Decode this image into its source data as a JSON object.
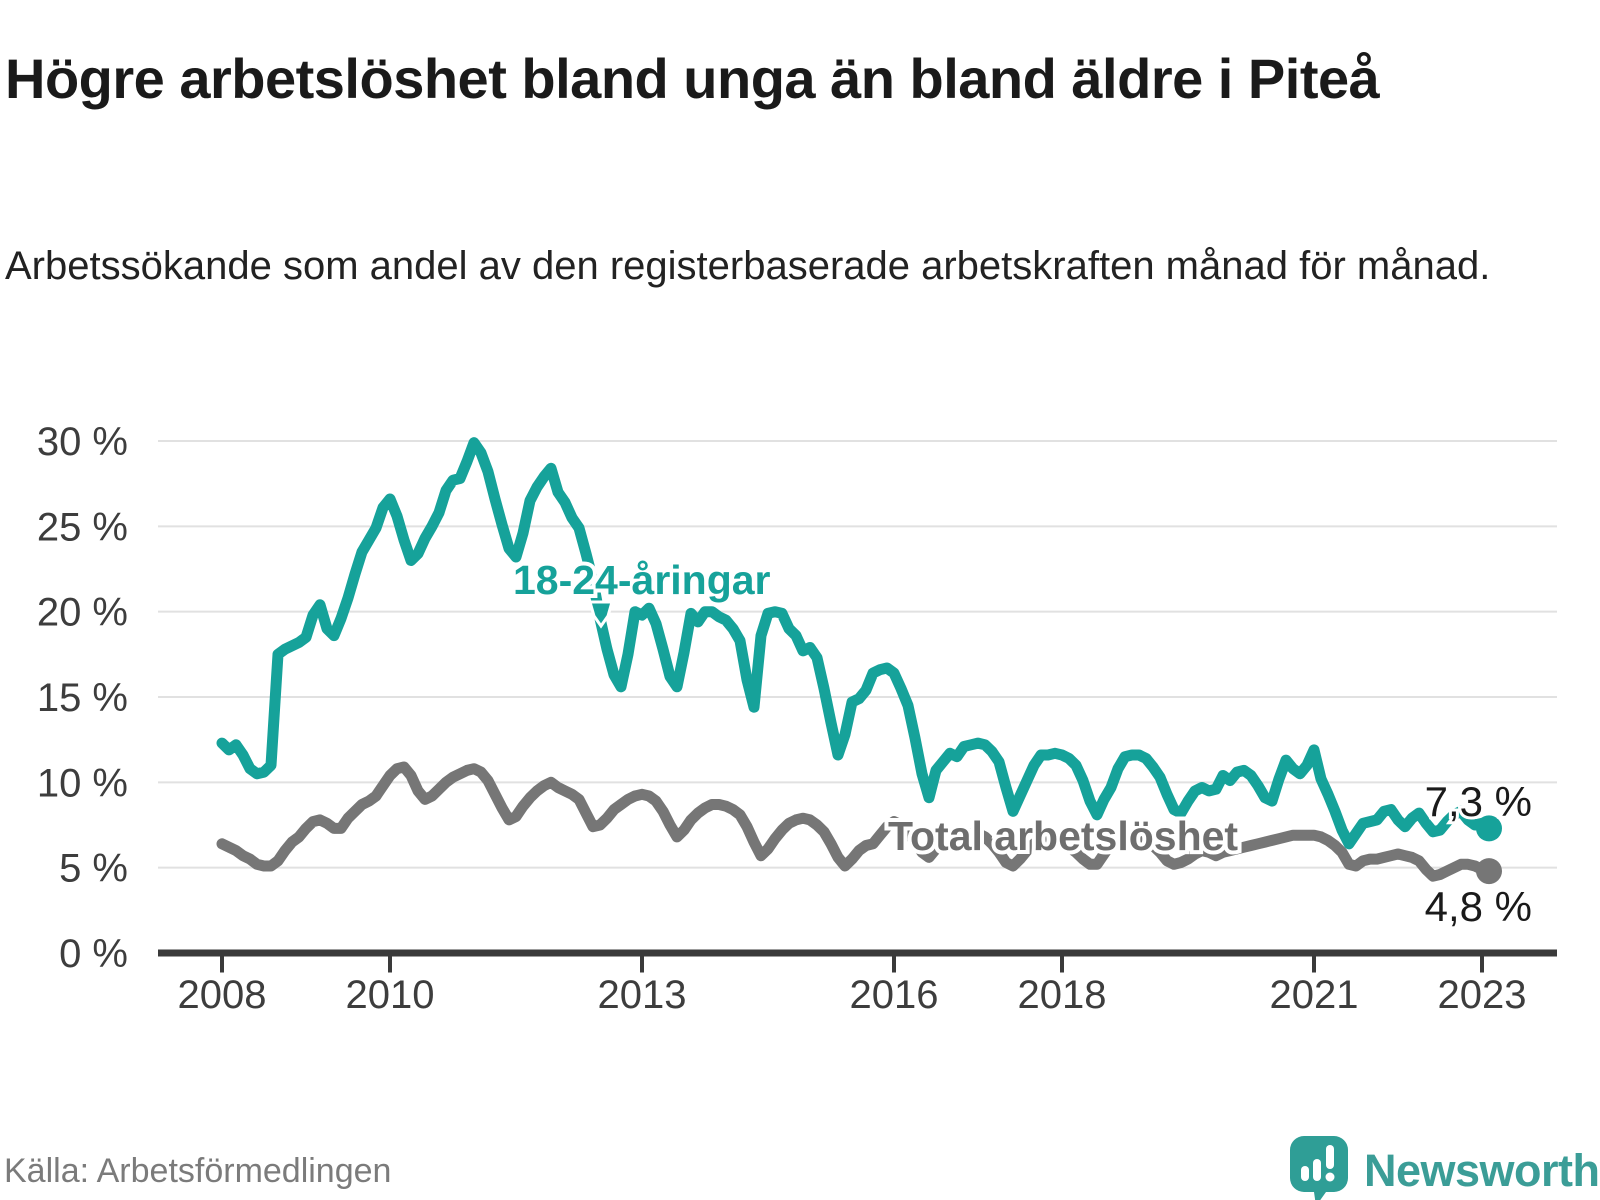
{
  "header": {
    "title": "Högre arbetslöshet bland unga än bland äldre i Piteå",
    "subtitle": "Arbetssökande som andel av den registerbaserade arbetskraften månad för månad."
  },
  "footer": {
    "source": "Källa: Arbetsförmedlingen",
    "brand": "Newsworthy"
  },
  "colors": {
    "title": "#1a1a1a",
    "subtitle": "#222222",
    "axis_text": "#3d3d3d",
    "gridline": "#e1e1e1",
    "axis_line": "#3a3a3a",
    "youth_line": "#16a29a",
    "total_line": "#767676",
    "total_label": "#6e6e6e",
    "value_label": "#1a1a1a",
    "source_text": "#7b7b7b",
    "brand_teal": "#2f9e96"
  },
  "chart_data": {
    "type": "line",
    "title": "Högre arbetslöshet bland unga än bland äldre i Piteå",
    "subtitle": "Arbetssökande som andel av den registerbaserade arbetskraften månad för månad.",
    "x_start": "2008-01",
    "x_end": "2023-02",
    "x_interval": "month",
    "x_tick_years": [
      2008,
      2010,
      2013,
      2016,
      2018,
      2021,
      2023
    ],
    "x_tick_labels": [
      "2008",
      "2010",
      "2013",
      "2016",
      "2018",
      "2021",
      "2023"
    ],
    "y_ticks": [
      0,
      5,
      10,
      15,
      20,
      25,
      30
    ],
    "y_tick_suffix": " %",
    "ylim": [
      0,
      30
    ],
    "grid": "horizontal",
    "legend_position": "inline-labels",
    "series": [
      {
        "name": "18-24-åringar",
        "color": "#16a29a",
        "end_label": "7,3 %",
        "end_value": 7.3,
        "values": [
          12.3,
          11.9,
          12.2,
          11.6,
          10.8,
          10.5,
          10.6,
          11.0,
          17.5,
          17.8,
          18.0,
          18.2,
          18.5,
          19.8,
          20.4,
          19.0,
          18.6,
          19.6,
          20.8,
          22.2,
          23.5,
          24.2,
          24.9,
          26.1,
          26.6,
          25.6,
          24.2,
          23.0,
          23.4,
          24.3,
          25.0,
          25.8,
          27.1,
          27.7,
          27.8,
          28.8,
          29.9,
          29.3,
          28.2,
          26.6,
          25.1,
          23.7,
          23.2,
          24.6,
          26.5,
          27.3,
          27.9,
          28.4,
          27.0,
          26.4,
          25.5,
          24.9,
          23.4,
          21.8,
          19.6,
          17.8,
          16.3,
          15.6,
          17.5,
          20.0,
          19.8,
          20.2,
          19.3,
          17.8,
          16.2,
          15.6,
          17.6,
          19.9,
          19.4,
          20.0,
          20.0,
          19.7,
          19.5,
          19.0,
          18.3,
          16.0,
          14.4,
          18.6,
          19.9,
          20.0,
          19.9,
          19.0,
          18.6,
          17.7,
          17.9,
          17.3,
          15.5,
          13.5,
          11.6,
          12.8,
          14.7,
          14.9,
          15.4,
          16.4,
          16.6,
          16.7,
          16.4,
          15.5,
          14.5,
          12.6,
          10.5,
          9.1,
          10.7,
          11.2,
          11.7,
          11.5,
          12.1,
          12.2,
          12.3,
          12.2,
          11.8,
          11.2,
          9.7,
          8.3,
          9.2,
          10.1,
          11.0,
          11.6,
          11.6,
          11.7,
          11.6,
          11.4,
          11.0,
          10.1,
          8.9,
          8.1,
          9.0,
          9.7,
          10.8,
          11.5,
          11.6,
          11.6,
          11.4,
          10.9,
          10.3,
          9.3,
          8.4,
          8.2,
          8.9,
          9.5,
          9.7,
          9.5,
          9.6,
          10.4,
          10.1,
          10.6,
          10.7,
          10.4,
          9.8,
          9.1,
          8.9,
          10.2,
          11.3,
          10.8,
          10.5,
          11.0,
          11.9,
          10.2,
          9.3,
          8.3,
          7.2,
          6.4,
          7.0,
          7.6,
          7.7,
          7.8,
          8.3,
          8.4,
          7.8,
          7.4,
          7.9,
          8.2,
          7.6,
          7.1,
          7.2,
          7.7,
          8.1,
          8.3,
          7.8,
          7.5,
          7.6,
          7.3
        ]
      },
      {
        "name": "Total arbetslöshet",
        "color": "#767676",
        "end_label": "4,8 %",
        "end_value": 4.8,
        "values": [
          6.4,
          6.2,
          6.0,
          5.7,
          5.5,
          5.2,
          5.1,
          5.1,
          5.4,
          6.0,
          6.5,
          6.8,
          7.3,
          7.7,
          7.8,
          7.6,
          7.3,
          7.3,
          7.9,
          8.3,
          8.7,
          8.9,
          9.2,
          9.8,
          10.4,
          10.8,
          10.9,
          10.4,
          9.5,
          9.0,
          9.2,
          9.6,
          10.0,
          10.3,
          10.5,
          10.7,
          10.8,
          10.6,
          10.1,
          9.3,
          8.5,
          7.8,
          8.0,
          8.6,
          9.1,
          9.5,
          9.8,
          10.0,
          9.7,
          9.5,
          9.3,
          9.0,
          8.2,
          7.4,
          7.5,
          7.9,
          8.4,
          8.7,
          9.0,
          9.2,
          9.3,
          9.2,
          8.9,
          8.3,
          7.5,
          6.8,
          7.2,
          7.8,
          8.2,
          8.5,
          8.7,
          8.7,
          8.6,
          8.4,
          8.1,
          7.4,
          6.5,
          5.7,
          6.1,
          6.7,
          7.2,
          7.6,
          7.8,
          7.9,
          7.8,
          7.5,
          7.1,
          6.4,
          5.6,
          5.1,
          5.5,
          6.0,
          6.3,
          6.4,
          6.9,
          7.4,
          7.7,
          7.5,
          7.1,
          6.5,
          5.9,
          5.6,
          6.1,
          6.6,
          7.0,
          7.1,
          6.9,
          7.0,
          7.0,
          6.8,
          6.4,
          5.9,
          5.3,
          5.1,
          5.5,
          6.0,
          6.4,
          6.7,
          6.7,
          6.6,
          6.4,
          6.2,
          5.9,
          5.5,
          5.2,
          5.2,
          5.8,
          6.4,
          6.6,
          6.8,
          6.9,
          6.9,
          6.6,
          6.3,
          5.9,
          5.4,
          5.2,
          5.3,
          5.5,
          5.8,
          6.0,
          5.9,
          5.7,
          5.9,
          6.0,
          6.1,
          6.2,
          6.3,
          6.4,
          6.5,
          6.6,
          6.7,
          6.8,
          6.9,
          6.9,
          6.9,
          6.9,
          6.8,
          6.6,
          6.3,
          5.9,
          5.2,
          5.1,
          5.4,
          5.5,
          5.5,
          5.6,
          5.7,
          5.8,
          5.7,
          5.6,
          5.4,
          4.9,
          4.5,
          4.6,
          4.8,
          5.0,
          5.2,
          5.2,
          5.1,
          4.9,
          4.8
        ]
      }
    ]
  }
}
